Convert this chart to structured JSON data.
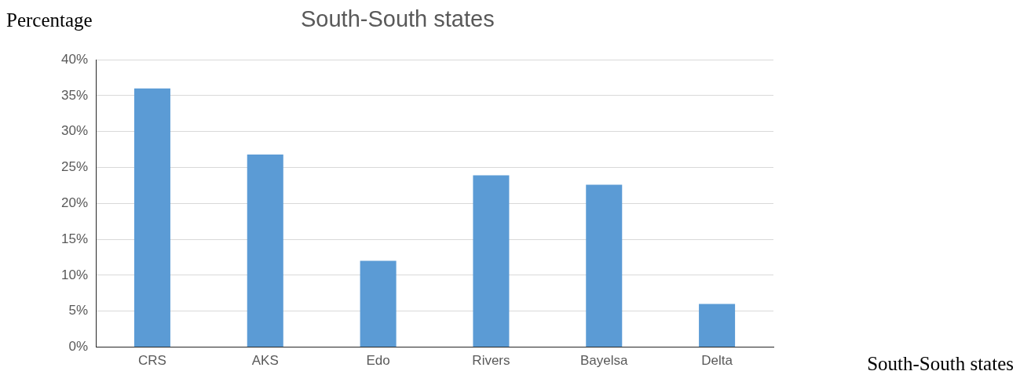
{
  "chart_data": {
    "type": "bar",
    "title": "South-South states",
    "xlabel": "South-South states",
    "ylabel": "Percentage",
    "categories": [
      "CRS",
      "AKS",
      "Edo",
      "Rivers",
      "Bayelsa",
      "Delta"
    ],
    "values": [
      36,
      26.8,
      12,
      23.9,
      22.6,
      6
    ],
    "color": "#5b9bd5",
    "ylim": [
      0,
      40
    ],
    "yticks": [
      {
        "value": 0,
        "label": "0%"
      },
      {
        "value": 5,
        "label": "5%"
      },
      {
        "value": 10,
        "label": "10%"
      },
      {
        "value": 15,
        "label": "15%"
      },
      {
        "value": 20,
        "label": "20%"
      },
      {
        "value": 25,
        "label": "25%"
      },
      {
        "value": 30,
        "label": "30%"
      },
      {
        "value": 35,
        "label": "35%"
      },
      {
        "value": 40,
        "label": "40%"
      }
    ],
    "grid": "y",
    "legend": false
  }
}
